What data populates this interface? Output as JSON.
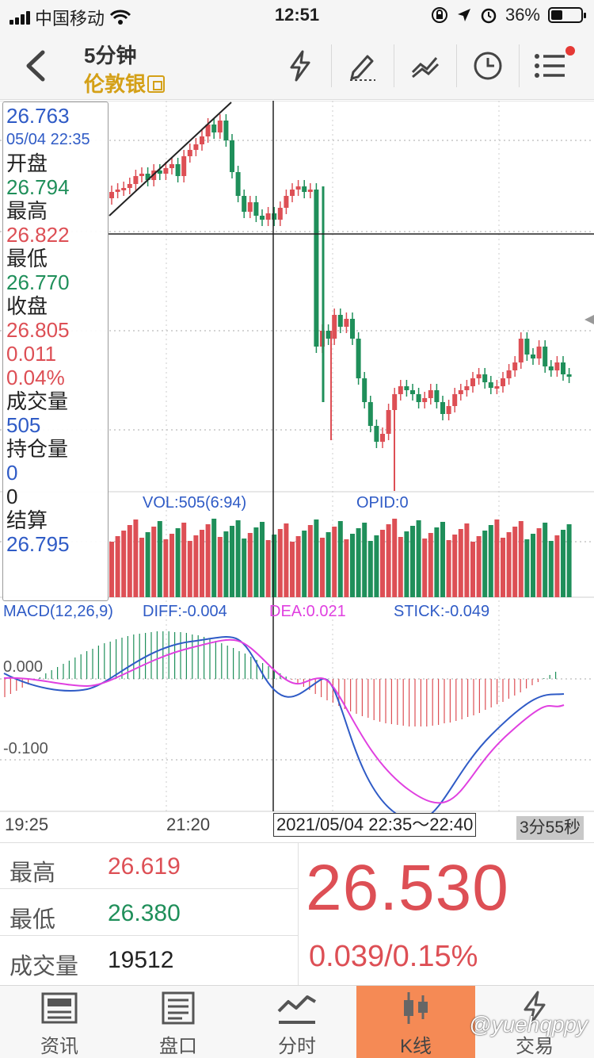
{
  "status_bar": {
    "carrier": "中国移动",
    "time": "12:51",
    "battery_percent": "36%",
    "battery_level": 0.36
  },
  "nav": {
    "period": "5分钟",
    "instrument": "伦敦银",
    "icons": [
      "lightning-icon",
      "pen-icon",
      "trend-lines-icon",
      "clock-icon",
      "menu-icon"
    ]
  },
  "info_panel": {
    "price": "26.763",
    "datetime": "05/04 22:35",
    "open_label": "开盘",
    "open": "26.794",
    "high_label": "最高",
    "high": "26.822",
    "low_label": "最低",
    "low": "26.770",
    "close_label": "收盘",
    "close": "26.805",
    "change": "0.011",
    "change_pct": "0.04%",
    "volume_label": "成交量",
    "volume": "505",
    "open_interest_label": "持仓量",
    "open_interest": "0",
    "open_interest_change": "0",
    "settle_label": "结算",
    "settle": "26.795"
  },
  "indicators": {
    "vol": "VOL:505(6:94)",
    "opid": "OPID:0",
    "macd": "MACD(12,26,9)",
    "diff": "DIFF:-0.004",
    "dea": "DEA:0.021",
    "stick": "STICK:-0.049",
    "macd_tick_high": "0.000",
    "macd_tick_low": "-0.100"
  },
  "time_axis": {
    "t1": "19:25",
    "t2": "21:20",
    "selected_range": "2021/05/04 22:35～22:40",
    "countdown": "3分55秒"
  },
  "quote": {
    "high_label": "最高",
    "high": "26.619",
    "low_label": "最低",
    "low": "26.380",
    "volume_label": "成交量",
    "volume": "19512",
    "last_price": "26.530",
    "change": "0.039/0.15%"
  },
  "tabs": [
    {
      "label": "资讯",
      "icon": "news-icon"
    },
    {
      "label": "盘口",
      "icon": "orderbook-icon"
    },
    {
      "label": "分时",
      "icon": "timeshare-icon"
    },
    {
      "label": "K线",
      "icon": "candlestick-icon",
      "active": true
    },
    {
      "label": "交易",
      "icon": "trade-icon"
    }
  ],
  "watermark": "@yuehqppy",
  "colors": {
    "up": "#dd4f55",
    "down": "#1f8f5a",
    "dea_line": "#e040e0",
    "diff_line": "#2f5bc6",
    "active_tab": "#f58a55",
    "instrument": "#d4a017"
  }
}
